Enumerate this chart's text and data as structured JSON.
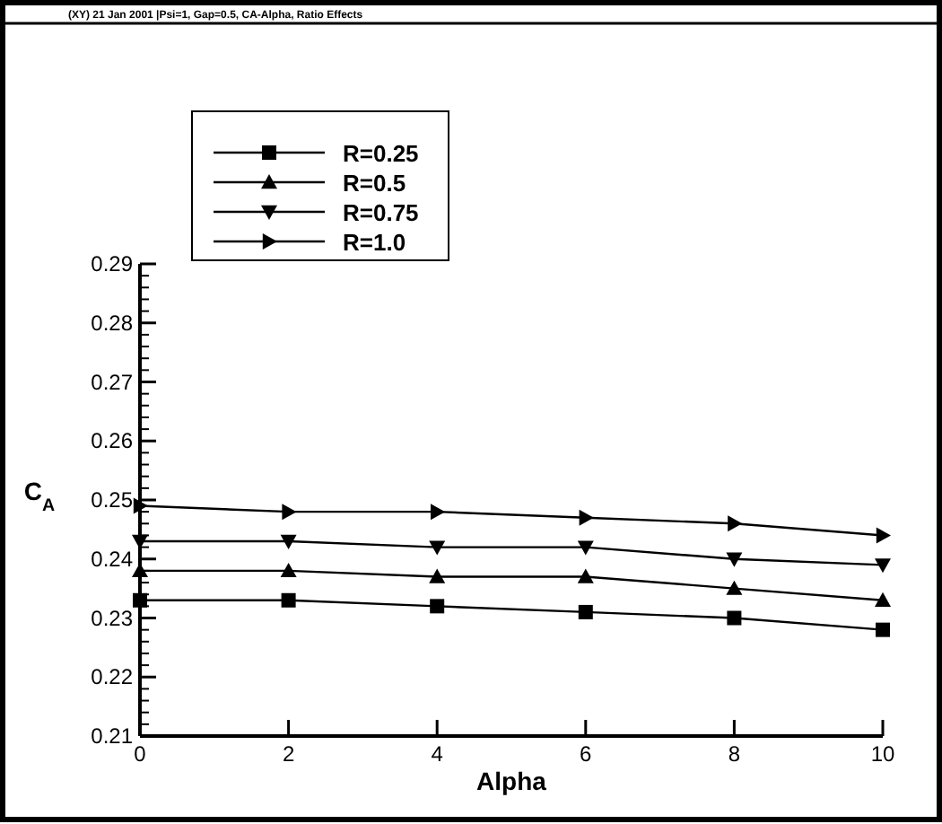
{
  "chart_data": {
    "type": "line",
    "title": "(XY) 21 Jan 2001 |Psi=1, Gap=0.5, CA-Alpha, Ratio Effects",
    "xlabel": "Alpha",
    "ylabel": "C$_{A}$",
    "x": [
      0,
      2,
      4,
      6,
      8,
      10
    ],
    "series": [
      {
        "name": "R=0.25",
        "color": "#000000",
        "marker": "square",
        "values": [
          0.233,
          0.233,
          0.232,
          0.231,
          0.23,
          0.228
        ]
      },
      {
        "name": "R=0.5",
        "color": "#000000",
        "marker": "triangle",
        "values": [
          0.238,
          0.238,
          0.237,
          0.237,
          0.235,
          0.233
        ]
      },
      {
        "name": "R=0.75",
        "color": "#000000",
        "marker": "triangle-down",
        "values": [
          0.243,
          0.243,
          0.242,
          0.242,
          0.24,
          0.239
        ]
      },
      {
        "name": "R=1.0",
        "color": "#000000",
        "marker": "triangle-right",
        "values": [
          0.249,
          0.248,
          0.248,
          0.247,
          0.246,
          0.244
        ]
      }
    ],
    "xlim": [
      0,
      10
    ],
    "xticks": [
      0,
      2,
      4,
      6,
      8,
      10
    ],
    "ylim": [
      0.21,
      0.29
    ],
    "yticks": [
      0.21,
      0.22,
      0.23,
      0.24,
      0.25,
      0.26,
      0.27,
      0.28,
      0.29
    ],
    "grid": false,
    "legend": "top left",
    "line_style": "solid"
  }
}
